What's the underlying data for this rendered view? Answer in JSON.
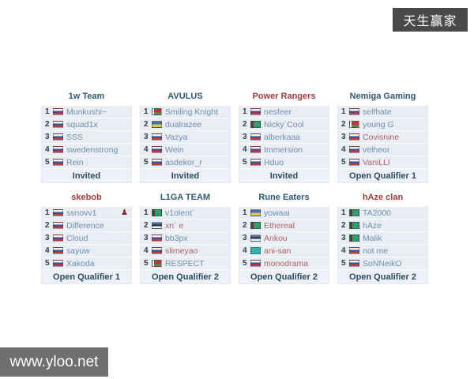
{
  "watermarks": {
    "top_right": "天生赢家",
    "bottom_left": "www.yloo.net"
  },
  "colors": {
    "title_blue": "#2f5873",
    "title_red": "#a03c3c",
    "player_blue": "#6e90ad",
    "player_red": "#b06363",
    "row_bg": "#e9edf4",
    "footer_text": "#2c4a66"
  },
  "flags": {
    "ru": "russia",
    "by": "belarus",
    "ua": "ukraine",
    "tm": "turkmenistan",
    "ee": "estonia",
    "kz": "kazakhstan"
  },
  "teams": [
    {
      "name": "1w Team",
      "name_color": "blue",
      "footer": "Invited",
      "players": [
        {
          "num": "1",
          "flag": "ru",
          "name": "Munkushi~",
          "color": "blue"
        },
        {
          "num": "2",
          "flag": "ru",
          "name": "squad1x",
          "color": "blue"
        },
        {
          "num": "3",
          "flag": "ru",
          "name": "SSS",
          "color": "blue"
        },
        {
          "num": "4",
          "flag": "ru",
          "name": "swedenstrong",
          "color": "blue"
        },
        {
          "num": "5",
          "flag": "ru",
          "name": "Rein",
          "color": "blue"
        }
      ]
    },
    {
      "name": "AVULUS",
      "name_color": "blue",
      "footer": "Invited",
      "players": [
        {
          "num": "1",
          "flag": "by",
          "name": "Smiling Knight",
          "color": "blue"
        },
        {
          "num": "2",
          "flag": "ua",
          "name": "dualrazee",
          "color": "blue"
        },
        {
          "num": "3",
          "flag": "ru",
          "name": "Vazya",
          "color": "blue"
        },
        {
          "num": "4",
          "flag": "ru",
          "name": "Wein",
          "color": "blue"
        },
        {
          "num": "5",
          "flag": "ru",
          "name": "asdekor_r",
          "color": "blue"
        }
      ]
    },
    {
      "name": "Power Rangers",
      "name_color": "red",
      "footer": "Invited",
      "players": [
        {
          "num": "1",
          "flag": "ru",
          "name": "nesfeer",
          "color": "blue"
        },
        {
          "num": "2",
          "flag": "tm",
          "name": "Nicky`Cool",
          "color": "blue"
        },
        {
          "num": "3",
          "flag": "ru",
          "name": "alberkaaa",
          "color": "blue"
        },
        {
          "num": "4",
          "flag": "ru",
          "name": "Immersion",
          "color": "blue"
        },
        {
          "num": "5",
          "flag": "ru",
          "name": "Hduo",
          "color": "blue"
        }
      ]
    },
    {
      "name": "Nemiga Gaming",
      "name_color": "blue",
      "footer": "Open Qualifier 1",
      "players": [
        {
          "num": "1",
          "flag": "ru",
          "name": "selfhate",
          "color": "blue"
        },
        {
          "num": "2",
          "flag": "by",
          "name": "young G",
          "color": "blue"
        },
        {
          "num": "3",
          "flag": "ru",
          "name": "Covisnine",
          "color": "red"
        },
        {
          "num": "4",
          "flag": "ru",
          "name": "velheor",
          "color": "blue"
        },
        {
          "num": "5",
          "flag": "ru",
          "name": "VaniLLI",
          "color": "red"
        }
      ]
    },
    {
      "name": "skebob",
      "name_color": "red",
      "footer": "Open Qualifier 1",
      "players": [
        {
          "num": "1",
          "flag": "ru",
          "name": "ssnovv1",
          "color": "blue",
          "icon": "captain"
        },
        {
          "num": "2",
          "flag": "ru",
          "name": "Difference",
          "color": "blue"
        },
        {
          "num": "3",
          "flag": "ru",
          "name": "Cloud",
          "color": "blue"
        },
        {
          "num": "4",
          "flag": "ru",
          "name": "sayuw",
          "color": "blue"
        },
        {
          "num": "5",
          "flag": "ru",
          "name": "Xakoda",
          "color": "blue"
        }
      ]
    },
    {
      "name": "L1GA TEAM",
      "name_color": "blue",
      "footer": "Open Qualifier 2",
      "players": [
        {
          "num": "1",
          "flag": "tm",
          "name": "v1olent`",
          "color": "blue"
        },
        {
          "num": "2",
          "flag": "ee",
          "name": "xn` e",
          "color": "red"
        },
        {
          "num": "3",
          "flag": "ru",
          "name": "bb3px",
          "color": "blue"
        },
        {
          "num": "4",
          "flag": "ru",
          "name": "slimeyao",
          "color": "red"
        },
        {
          "num": "5",
          "flag": "by",
          "name": "RESPECT",
          "color": "blue"
        }
      ]
    },
    {
      "name": "Rune Eaters",
      "name_color": "blue",
      "footer": "Open Qualifier 2",
      "players": [
        {
          "num": "1",
          "flag": "ua",
          "name": "yowaai",
          "color": "blue"
        },
        {
          "num": "2",
          "flag": "tm",
          "name": "Ethereal",
          "color": "red"
        },
        {
          "num": "3",
          "flag": "ee",
          "name": "Ankou",
          "color": "red"
        },
        {
          "num": "4",
          "flag": "kz",
          "name": "ani-san",
          "color": "red"
        },
        {
          "num": "5",
          "flag": "ru",
          "name": "monodrama",
          "color": "red"
        }
      ]
    },
    {
      "name": "hAze clan",
      "name_color": "red",
      "footer": "Open Qualifier 2",
      "players": [
        {
          "num": "1",
          "flag": "tm",
          "name": "TA2000",
          "color": "blue"
        },
        {
          "num": "2",
          "flag": "tm",
          "name": "hAze",
          "color": "blue"
        },
        {
          "num": "3",
          "flag": "tm",
          "name": "Malik",
          "color": "blue"
        },
        {
          "num": "4",
          "flag": "ru",
          "name": "not me",
          "color": "blue"
        },
        {
          "num": "5",
          "flag": "ru",
          "name": "SoNNeikO",
          "color": "blue"
        }
      ]
    }
  ]
}
